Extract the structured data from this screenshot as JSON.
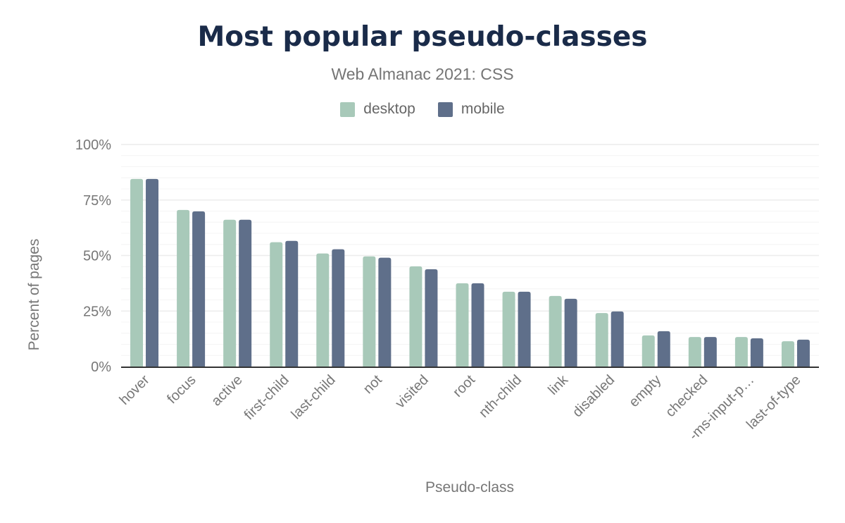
{
  "chart_data": {
    "type": "bar",
    "title": "Most popular pseudo-classes",
    "subtitle": "Web Almanac 2021: CSS",
    "xlabel": "Pseudo-class",
    "ylabel": "Percent of pages",
    "ylim": [
      0,
      100
    ],
    "yticks": [
      "0%",
      "25%",
      "50%",
      "75%",
      "100%"
    ],
    "grid": true,
    "legend_position": "top",
    "categories": [
      "hover",
      "focus",
      "active",
      "first-child",
      "last-child",
      "not",
      "visited",
      "root",
      "nth-child",
      "link",
      "disabled",
      "empty",
      "checked",
      "-ms-input-p…",
      "last-of-type"
    ],
    "series": [
      {
        "name": "desktop",
        "color": "#a8c9b9",
        "values": [
          84.5,
          70.5,
          66.1,
          56.0,
          50.9,
          49.6,
          45.1,
          37.5,
          33.7,
          31.8,
          24.1,
          14.0,
          13.3,
          13.3,
          11.4
        ]
      },
      {
        "name": "mobile",
        "color": "#5f6f8a",
        "values": [
          84.5,
          69.9,
          66.1,
          56.6,
          52.8,
          49.0,
          43.8,
          37.5,
          33.7,
          30.5,
          24.8,
          15.9,
          13.3,
          12.7,
          12.1
        ]
      }
    ]
  }
}
